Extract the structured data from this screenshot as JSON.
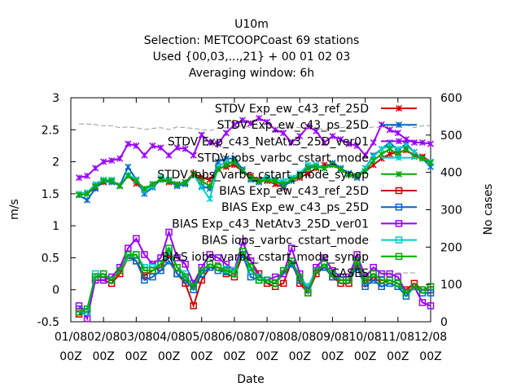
{
  "chart_data": {
    "type": "line",
    "title_lines": [
      "U10m",
      "Selection: METCOOPCoast     69 stations",
      "Used {00,03,...,21} + 00 01 02 03",
      "Averaging window:  6h"
    ],
    "xlabel": "Date",
    "ylabel": "m/s",
    "y2label": "No cases",
    "ylim": [
      -0.5,
      3
    ],
    "y2lim": [
      0,
      600
    ],
    "yticks": [
      "-0.5",
      "0",
      "0.5",
      "1",
      "1.5",
      "2",
      "2.5",
      "3"
    ],
    "y2ticks": [
      "0",
      "100",
      "200",
      "300",
      "400",
      "500",
      "600"
    ],
    "xlim": [
      0,
      44
    ],
    "xticks": [
      {
        "x": 0,
        "top": "01/08",
        "bottom": "00Z"
      },
      {
        "x": 4,
        "top": "02/08",
        "bottom": "00Z"
      },
      {
        "x": 8,
        "top": "03/08",
        "bottom": "00Z"
      },
      {
        "x": 12,
        "top": "04/08",
        "bottom": "00Z"
      },
      {
        "x": 16,
        "top": "05/08",
        "bottom": "00Z"
      },
      {
        "x": 20,
        "top": "06/08",
        "bottom": "00Z"
      },
      {
        "x": 24,
        "top": "07/08",
        "bottom": "00Z"
      },
      {
        "x": 28,
        "top": "08/08",
        "bottom": "00Z"
      },
      {
        "x": 32,
        "top": "09/08",
        "bottom": "00Z"
      },
      {
        "x": 36,
        "top": "10/08",
        "bottom": "00Z"
      },
      {
        "x": 40,
        "top": "11/08",
        "bottom": "00Z"
      },
      {
        "x": 44,
        "top": "12/08",
        "bottom": "00Z"
      }
    ],
    "x_start": 1,
    "series": [
      {
        "name": "STDV Exp_ew_c43_ref_25D",
        "color": "#cc0000",
        "marker": "x",
        "values": [
          1.48,
          1.5,
          1.6,
          1.68,
          1.7,
          1.62,
          1.78,
          1.66,
          1.55,
          1.65,
          1.72,
          1.68,
          1.65,
          1.68,
          1.82,
          1.75,
          1.72,
          1.9,
          1.92,
          1.95,
          1.85,
          1.78,
          1.72,
          1.7,
          1.65,
          1.6,
          1.72,
          1.75,
          1.82,
          1.9,
          1.95,
          1.95,
          1.88,
          1.8,
          1.78,
          1.85,
          1.95,
          2.05,
          2.12,
          2.15,
          2.18,
          2.1,
          2.08,
          2.0
        ]
      },
      {
        "name": "STDV Exp_ew_c43_ps_25D",
        "color": "#0066cc",
        "marker": "x",
        "values": [
          1.48,
          1.4,
          1.58,
          1.7,
          1.68,
          1.63,
          1.92,
          1.72,
          1.5,
          1.6,
          1.72,
          1.7,
          1.62,
          1.65,
          1.8,
          1.62,
          1.58,
          2.0,
          2.05,
          2.05,
          1.88,
          1.72,
          1.68,
          1.72,
          1.7,
          1.62,
          1.7,
          1.8,
          1.92,
          1.95,
          1.9,
          1.98,
          1.9,
          1.82,
          1.75,
          1.9,
          2.1,
          2.2,
          2.3,
          2.18,
          2.28,
          2.15,
          2.05,
          1.92
        ]
      },
      {
        "name": "STDV Exp_c43_NetAtv3_25D_ver01",
        "color": "#9900ff",
        "marker": "x",
        "values": [
          1.75,
          1.78,
          1.9,
          2.0,
          2.02,
          2.05,
          2.28,
          2.25,
          2.1,
          2.25,
          2.22,
          2.1,
          2.22,
          2.2,
          2.1,
          2.42,
          2.3,
          2.28,
          2.45,
          2.58,
          2.65,
          2.6,
          2.68,
          2.62,
          2.5,
          2.45,
          2.3,
          2.4,
          2.55,
          2.48,
          2.3,
          2.4,
          2.35,
          2.28,
          2.25,
          2.1,
          2.3,
          2.58,
          2.5,
          2.45,
          2.35,
          2.3,
          2.3,
          2.28
        ]
      },
      {
        "name": "STDV iobs_varbc_cstart_mode",
        "color": "#00cccc",
        "marker": "x",
        "values": [
          1.5,
          1.52,
          1.65,
          1.72,
          1.72,
          1.62,
          1.8,
          1.72,
          1.55,
          1.62,
          1.75,
          1.72,
          1.65,
          1.68,
          1.8,
          1.6,
          1.42,
          1.92,
          2.0,
          2.0,
          1.85,
          1.75,
          1.7,
          1.75,
          1.72,
          1.7,
          1.75,
          1.82,
          1.95,
          1.95,
          1.9,
          1.95,
          1.88,
          1.8,
          1.78,
          1.9,
          2.08,
          2.2,
          2.25,
          2.2,
          2.25,
          2.15,
          2.05,
          2.0
        ]
      },
      {
        "name": "STDV iobs_varbc_cstart_mode_synop",
        "color": "#00aa00",
        "marker": "x",
        "values": [
          1.48,
          1.5,
          1.62,
          1.7,
          1.7,
          1.62,
          1.78,
          1.7,
          1.58,
          1.65,
          1.72,
          1.7,
          1.65,
          1.68,
          1.8,
          1.7,
          1.62,
          1.88,
          1.95,
          2.0,
          1.85,
          1.75,
          1.7,
          1.72,
          1.7,
          1.65,
          1.72,
          1.78,
          1.9,
          1.92,
          1.9,
          1.95,
          1.88,
          1.8,
          1.78,
          1.85,
          2.02,
          2.12,
          2.2,
          2.12,
          2.2,
          2.08,
          2.05,
          1.98
        ]
      },
      {
        "name": "BIAS Exp_ew_c43_ref_25D",
        "color": "#cc0000",
        "marker": "square",
        "values": [
          -0.38,
          -0.35,
          0.15,
          0.15,
          0.1,
          0.25,
          0.5,
          0.45,
          0.22,
          0.3,
          0.35,
          0.55,
          0.25,
          0.1,
          -0.25,
          0.15,
          0.35,
          0.35,
          0.25,
          0.2,
          0.55,
          0.45,
          0.25,
          0.1,
          0.05,
          0.1,
          0.45,
          0.1,
          -0.05,
          0.25,
          0.35,
          0.2,
          0.1,
          0.1,
          0.4,
          0.1,
          0.2,
          0.1,
          0.15,
          0.1,
          0.0,
          0.1,
          0.0,
          0.0
        ]
      },
      {
        "name": "BIAS Exp_ew_c43_ps_25D",
        "color": "#0066cc",
        "marker": "square",
        "values": [
          -0.3,
          -0.3,
          0.2,
          0.2,
          0.15,
          0.3,
          0.55,
          0.45,
          0.15,
          0.2,
          0.3,
          0.45,
          0.25,
          0.15,
          0.0,
          0.25,
          0.35,
          0.3,
          0.28,
          0.3,
          0.55,
          0.2,
          0.15,
          0.15,
          0.1,
          0.25,
          0.4,
          0.15,
          0.05,
          0.3,
          0.35,
          0.2,
          0.15,
          0.15,
          0.35,
          0.05,
          0.15,
          0.05,
          0.1,
          0.05,
          -0.1,
          0.05,
          -0.05,
          -0.05
        ]
      },
      {
        "name": "BIAS Exp_c43_NetAtv3_25D_ver01",
        "color": "#9900ff",
        "marker": "square",
        "values": [
          -0.25,
          -0.45,
          0.15,
          0.15,
          0.2,
          0.35,
          0.65,
          0.8,
          0.55,
          0.4,
          0.5,
          0.9,
          0.5,
          0.4,
          0.1,
          0.35,
          0.55,
          0.5,
          0.4,
          0.3,
          0.75,
          0.45,
          0.2,
          0.15,
          0.2,
          0.25,
          0.65,
          0.25,
          0.0,
          0.35,
          0.5,
          0.3,
          0.2,
          0.2,
          0.55,
          0.2,
          0.35,
          0.25,
          0.25,
          0.2,
          -0.05,
          0.05,
          -0.2,
          -0.25
        ]
      },
      {
        "name": "BIAS iobs_varbc_cstart_mode",
        "color": "#00cccc",
        "marker": "square",
        "values": [
          -0.35,
          -0.35,
          0.25,
          0.25,
          0.15,
          0.3,
          0.5,
          0.55,
          0.35,
          0.35,
          0.4,
          0.6,
          0.35,
          0.25,
          0.05,
          0.3,
          0.4,
          0.35,
          0.32,
          0.3,
          0.6,
          0.3,
          0.2,
          0.15,
          0.1,
          0.3,
          0.45,
          0.2,
          0.05,
          0.3,
          0.4,
          0.25,
          0.15,
          0.15,
          0.45,
          0.15,
          0.25,
          0.15,
          0.15,
          0.1,
          -0.05,
          0.05,
          0.0,
          0.05
        ]
      },
      {
        "name": "BIAS iobs_varbc_cstart_mode_synop",
        "color": "#00aa00",
        "marker": "square",
        "values": [
          -0.35,
          -0.3,
          0.2,
          0.25,
          0.15,
          0.3,
          0.55,
          0.55,
          0.3,
          0.3,
          0.4,
          0.65,
          0.35,
          0.2,
          0.05,
          0.3,
          0.4,
          0.35,
          0.3,
          0.25,
          0.6,
          0.35,
          0.15,
          0.15,
          0.1,
          0.3,
          0.45,
          0.2,
          -0.05,
          0.3,
          0.4,
          0.25,
          0.15,
          0.15,
          0.45,
          0.15,
          0.25,
          0.15,
          0.15,
          0.1,
          -0.05,
          0.05,
          0.0,
          0.05
        ]
      },
      {
        "name": "CASES",
        "color": "#999999",
        "marker": "none",
        "dashed": true,
        "axis": "y2",
        "values": [
          530,
          530,
          528,
          525,
          525,
          520,
          522,
          520,
          515,
          518,
          520,
          515,
          522,
          520,
          518,
          515,
          512,
          518,
          520,
          522,
          525,
          520,
          518,
          520,
          520,
          518,
          522,
          520,
          520,
          518,
          515,
          518,
          520,
          522,
          520,
          518,
          522,
          520,
          525,
          525,
          528,
          520,
          525,
          525
        ]
      }
    ],
    "legend_position": "top-right",
    "grid": false
  }
}
